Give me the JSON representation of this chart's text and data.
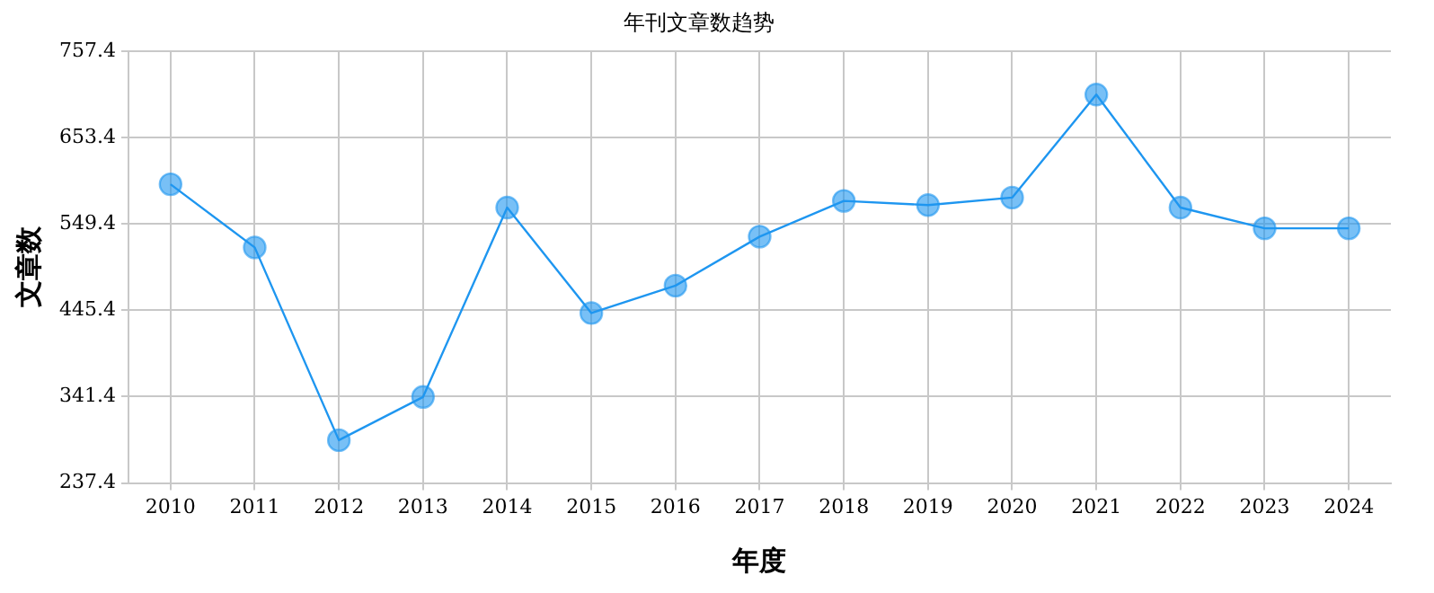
{
  "chart_data": {
    "type": "line",
    "title": "年刊文章数趋势",
    "xlabel": "年度",
    "ylabel": "文章数",
    "categories": [
      "2010",
      "2011",
      "2012",
      "2013",
      "2014",
      "2015",
      "2016",
      "2017",
      "2018",
      "2019",
      "2020",
      "2021",
      "2022",
      "2023",
      "2024"
    ],
    "series": [
      {
        "color": "#1e96f0",
        "values": [
          597,
          521,
          289,
          341,
          569,
          442,
          475,
          534,
          577,
          572,
          581,
          705,
          569,
          544,
          544
        ]
      }
    ],
    "ylim": [
      237.4,
      757.4
    ],
    "yticks": [
      237.4,
      341.4,
      445.4,
      549.4,
      653.4,
      757.4
    ],
    "grid": true,
    "legend": false,
    "marker": "circle",
    "line_style": "solid"
  }
}
